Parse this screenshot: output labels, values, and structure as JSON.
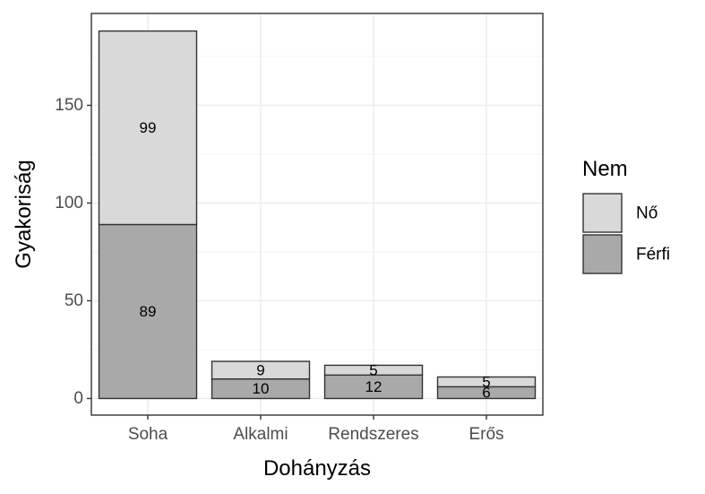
{
  "chart_data": {
    "type": "bar",
    "stacked": true,
    "categories": [
      "Soha",
      "Alkalmi",
      "Rendszeres",
      "Erős"
    ],
    "series": [
      {
        "name": "Férfi",
        "values": [
          89,
          10,
          12,
          6
        ],
        "color": "#a9a9a9"
      },
      {
        "name": "Nő",
        "values": [
          99,
          9,
          5,
          5
        ],
        "color": "#d9d9d9"
      }
    ],
    "xlabel": "Dohányzás",
    "ylabel": "Gyakoriság",
    "ylim": [
      -8.5,
      197
    ],
    "yticks": [
      0,
      50,
      100,
      150
    ],
    "grid": true,
    "legend": {
      "title": "Nem",
      "position": "right",
      "items": [
        {
          "label": "Nő",
          "color": "#d9d9d9"
        },
        {
          "label": "Férfi",
          "color": "#a9a9a9"
        }
      ]
    },
    "colors": {
      "panel_border": "#333333",
      "grid_major": "#ebebeb",
      "bar_outline": "#333333"
    }
  }
}
